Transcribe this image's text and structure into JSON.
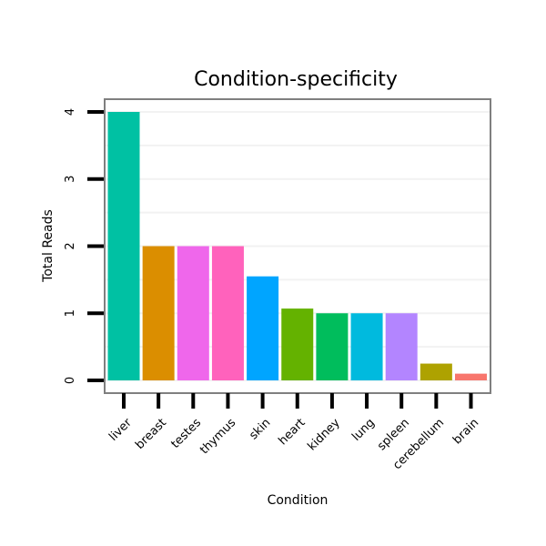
{
  "chart_data": {
    "type": "bar",
    "title": "Condition-specificity",
    "xlabel": "Condition",
    "ylabel": "Total Reads",
    "ylim": [
      0,
      4.2
    ],
    "yticks": [
      "0",
      "1",
      "2",
      "3",
      "4"
    ],
    "grid": true,
    "categories": [
      "liver",
      "breast",
      "testes",
      "thymus",
      "skin",
      "heart",
      "kidney",
      "lung",
      "spleen",
      "cerebellum",
      "brain"
    ],
    "values": [
      4,
      2,
      2,
      2,
      1.55,
      1.07,
      1,
      1,
      1,
      0.25,
      0.1
    ],
    "colors": [
      "#00C1A3",
      "#DB8E00",
      "#EF67EB",
      "#FF62BC",
      "#00A5FF",
      "#64B200",
      "#00BD5C",
      "#00BADE",
      "#B385FF",
      "#AEA200",
      "#F8766D"
    ]
  }
}
